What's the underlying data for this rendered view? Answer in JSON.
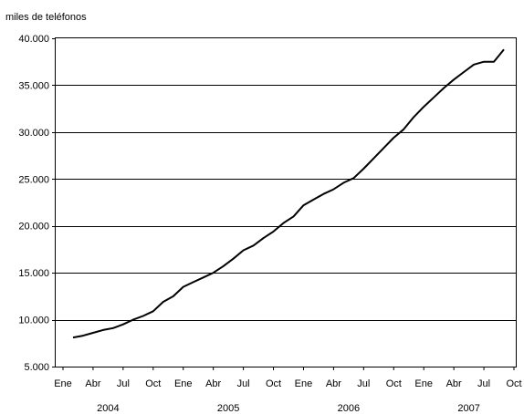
{
  "chart_data": {
    "type": "line",
    "title": "",
    "ylabel": "miles de teléfonos",
    "xlabel": "",
    "ylim": [
      5000,
      40000
    ],
    "yticks": [
      5000,
      10000,
      15000,
      20000,
      25000,
      30000,
      35000,
      40000
    ],
    "ytick_labels": [
      "5.000",
      "10.000",
      "15.000",
      "20.000",
      "25.000",
      "30.000",
      "35.000",
      "40.000"
    ],
    "grid": true,
    "legend": "none",
    "x_tick_labels": [
      "Ene",
      "Abr",
      "Jul",
      "Oct",
      "Ene",
      "Abr",
      "Jul",
      "Oct",
      "Ene",
      "Abr",
      "Jul",
      "Oct",
      "Ene",
      "Abr",
      "Jul",
      "Oct"
    ],
    "year_labels": [
      "2004",
      "2005",
      "2006",
      "2007"
    ],
    "series": [
      {
        "color": "#000000",
        "values": [
          8100,
          8300,
          8600,
          8900,
          9100,
          9500,
          10000,
          10400,
          10900,
          11900,
          12500,
          13500,
          14000,
          14500,
          15000,
          15700,
          16500,
          17400,
          17900,
          18700,
          19400,
          20300,
          21000,
          22200,
          22800,
          23400,
          23900,
          24600,
          25100,
          26100,
          27200,
          28300,
          29400,
          30300,
          31600,
          32700,
          33700,
          34700,
          35600,
          36400,
          37200,
          37500,
          37500,
          38800
        ]
      }
    ]
  }
}
